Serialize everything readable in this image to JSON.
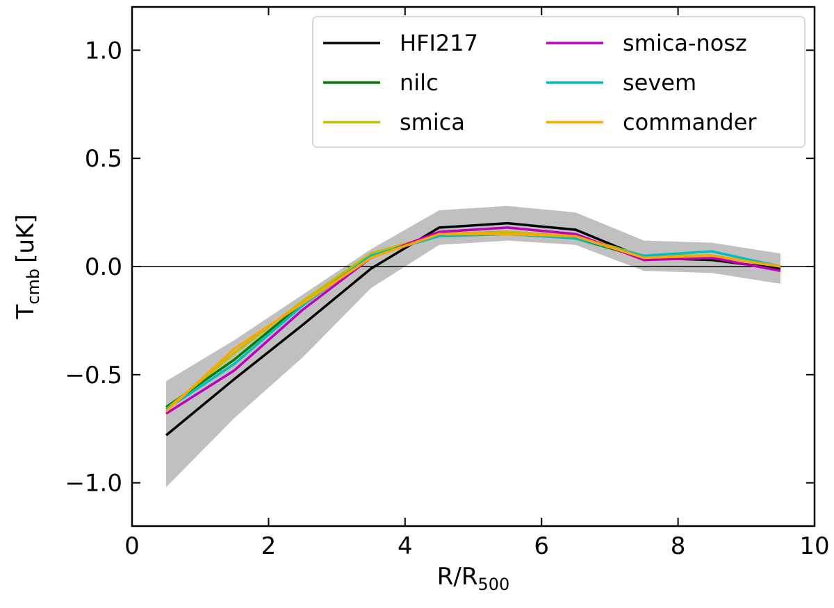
{
  "chart_data": {
    "type": "line",
    "title": "",
    "xlabel": "R/R",
    "xlabel_sub": "500",
    "ylabel": "T",
    "ylabel_sub": "cmb",
    "ylabel_unit": "[uK]",
    "xlim": [
      0,
      10
    ],
    "ylim": [
      -1.2,
      1.2
    ],
    "x_ticks": [
      0,
      2,
      4,
      6,
      8,
      10
    ],
    "x_tick_labels": [
      "0",
      "2",
      "4",
      "6",
      "8",
      "10"
    ],
    "y_ticks": [
      -1.0,
      -0.5,
      0.0,
      0.5,
      1.0
    ],
    "y_tick_labels": [
      "−1.0",
      "−0.5",
      "0.0",
      "0.5",
      "1.0"
    ],
    "grid": false,
    "zero_line": true,
    "legend_position": "top-right",
    "x": [
      0.5,
      1.5,
      2.5,
      3.5,
      4.5,
      5.5,
      6.5,
      7.5,
      8.5,
      9.5
    ],
    "band": {
      "name": "uncertainty",
      "color": "#c0c0c0",
      "lower": [
        -1.02,
        -0.7,
        -0.42,
        -0.1,
        0.1,
        0.12,
        0.1,
        -0.02,
        -0.03,
        -0.08
      ],
      "upper": [
        -0.53,
        -0.34,
        -0.13,
        0.08,
        0.26,
        0.28,
        0.25,
        0.12,
        0.11,
        0.06
      ]
    },
    "series": [
      {
        "name": "HFI217",
        "color": "#000000",
        "values": [
          -0.78,
          -0.52,
          -0.27,
          -0.01,
          0.18,
          0.2,
          0.17,
          0.04,
          0.03,
          -0.01
        ]
      },
      {
        "name": "nilc",
        "color": "#008000",
        "values": [
          -0.65,
          -0.43,
          -0.17,
          0.05,
          0.15,
          0.16,
          0.13,
          0.04,
          0.05,
          0.0
        ]
      },
      {
        "name": "smica",
        "color": "#bfbf00",
        "values": [
          -0.66,
          -0.4,
          -0.16,
          0.06,
          0.15,
          0.16,
          0.14,
          0.05,
          0.05,
          0.0
        ]
      },
      {
        "name": "smica-nosz",
        "color": "#bf00bf",
        "values": [
          -0.68,
          -0.48,
          -0.2,
          0.04,
          0.16,
          0.18,
          0.15,
          0.03,
          0.04,
          -0.02
        ]
      },
      {
        "name": "sevem",
        "color": "#00bfbf",
        "values": [
          -0.66,
          -0.45,
          -0.18,
          0.05,
          0.14,
          0.15,
          0.13,
          0.05,
          0.07,
          0.0
        ]
      },
      {
        "name": "commander",
        "color": "#ffa500",
        "values": [
          -0.67,
          -0.38,
          -0.17,
          0.04,
          0.15,
          0.15,
          0.14,
          0.04,
          0.05,
          0.0
        ]
      }
    ]
  }
}
